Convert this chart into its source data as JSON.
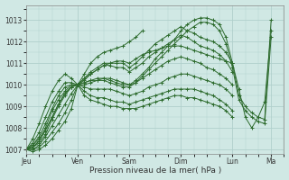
{
  "bg_color": "#d0e8e4",
  "grid_color": "#b0d0cc",
  "line_color": "#2d6b2d",
  "xlabel": "Pression niveau de la mer( hPa )",
  "ylim": [
    1006.8,
    1013.7
  ],
  "yticks": [
    1007,
    1008,
    1009,
    1010,
    1011,
    1012,
    1013
  ],
  "day_labels": [
    "Jeu",
    "Ven",
    "Sam",
    "Dim",
    "Lun",
    "Ma"
  ],
  "day_positions": [
    0,
    24,
    48,
    72,
    96,
    114
  ],
  "total_hours": 120,
  "lines": [
    {
      "x": [
        0,
        3,
        6,
        9,
        12,
        15,
        18,
        21,
        24,
        27,
        30,
        33,
        36,
        39,
        42,
        45,
        48,
        51,
        54,
        57,
        60,
        63,
        66,
        69,
        72,
        75,
        78,
        81,
        84,
        87,
        90,
        93,
        96,
        99,
        102,
        105,
        108,
        111,
        114
      ],
      "y": [
        1007.0,
        1007.2,
        1007.5,
        1008.0,
        1008.8,
        1009.3,
        1009.7,
        1010.0,
        1010.0,
        1010.1,
        1010.2,
        1010.3,
        1010.3,
        1010.2,
        1010.1,
        1010.0,
        1010.0,
        1010.2,
        1010.5,
        1010.8,
        1011.2,
        1011.5,
        1011.8,
        1012.1,
        1012.5,
        1012.8,
        1013.0,
        1013.1,
        1013.1,
        1013.0,
        1012.8,
        1012.2,
        1011.0,
        1009.5,
        1009.0,
        1008.7,
        1008.5,
        1008.4,
        1013.0
      ]
    },
    {
      "x": [
        0,
        3,
        6,
        9,
        12,
        15,
        18,
        21,
        24,
        27,
        30,
        33,
        36,
        39,
        42,
        45,
        48,
        51,
        54,
        57,
        60,
        63,
        66,
        69,
        72,
        75,
        78,
        81,
        84,
        87,
        90,
        93,
        96,
        99,
        102,
        105,
        108,
        111,
        114
      ],
      "y": [
        1007.0,
        1007.1,
        1007.3,
        1007.7,
        1008.4,
        1009.0,
        1009.5,
        1009.9,
        1010.0,
        1010.1,
        1010.2,
        1010.2,
        1010.2,
        1010.1,
        1010.0,
        1009.9,
        1009.9,
        1010.1,
        1010.4,
        1010.7,
        1011.0,
        1011.3,
        1011.6,
        1011.9,
        1012.2,
        1012.5,
        1012.7,
        1012.9,
        1012.9,
        1012.8,
        1012.5,
        1011.9,
        1010.8,
        1009.3,
        1008.8,
        1008.5,
        1008.3,
        1008.2,
        1012.2
      ]
    },
    {
      "x": [
        0,
        3,
        6,
        9,
        12,
        15,
        18,
        21,
        24,
        27,
        30,
        33,
        36,
        39,
        42,
        45,
        48,
        51,
        54,
        57,
        60,
        63,
        66,
        69,
        72,
        75,
        78,
        81,
        84,
        87,
        90,
        93,
        96
      ],
      "y": [
        1007.0,
        1007.3,
        1007.8,
        1008.5,
        1009.2,
        1009.7,
        1010.1,
        1010.1,
        1010.0,
        1010.3,
        1010.6,
        1010.8,
        1011.0,
        1011.0,
        1011.0,
        1011.0,
        1010.8,
        1011.0,
        1011.3,
        1011.6,
        1011.9,
        1012.1,
        1012.3,
        1012.5,
        1012.7,
        1012.5,
        1012.4,
        1012.2,
        1012.1,
        1012.0,
        1011.8,
        1011.5,
        1011.0
      ]
    },
    {
      "x": [
        0,
        3,
        6,
        9,
        12,
        15,
        18,
        21,
        24,
        27,
        30,
        33,
        36,
        39,
        42,
        45,
        48,
        51,
        54,
        57,
        60,
        63,
        66,
        69,
        72,
        75,
        78,
        81,
        84,
        87,
        90,
        93,
        96
      ],
      "y": [
        1007.0,
        1007.2,
        1007.6,
        1008.2,
        1008.9,
        1009.5,
        1009.9,
        1010.0,
        1010.0,
        1010.2,
        1010.5,
        1010.7,
        1010.9,
        1010.9,
        1010.8,
        1010.8,
        1010.6,
        1010.8,
        1011.0,
        1011.3,
        1011.5,
        1011.7,
        1011.9,
        1012.1,
        1012.3,
        1012.2,
        1012.0,
        1011.8,
        1011.7,
        1011.6,
        1011.4,
        1011.1,
        1010.6
      ]
    },
    {
      "x": [
        0,
        3,
        6,
        9,
        12,
        15,
        18,
        21,
        24,
        27,
        30,
        33,
        36,
        39,
        42,
        45,
        48,
        51,
        54,
        57,
        60,
        63,
        66,
        69,
        72,
        75,
        78,
        81,
        84,
        87,
        90,
        93,
        96
      ],
      "y": [
        1007.0,
        1007.1,
        1007.4,
        1007.9,
        1008.5,
        1009.1,
        1009.6,
        1009.9,
        1010.0,
        1010.0,
        1010.1,
        1010.2,
        1010.3,
        1010.3,
        1010.2,
        1010.1,
        1010.0,
        1010.1,
        1010.3,
        1010.5,
        1010.7,
        1010.9,
        1011.1,
        1011.2,
        1011.3,
        1011.2,
        1011.1,
        1011.0,
        1010.8,
        1010.7,
        1010.5,
        1010.3,
        1010.0
      ]
    },
    {
      "x": [
        0,
        3,
        6,
        9,
        12,
        15,
        18,
        21,
        24,
        27,
        30,
        33,
        36,
        39,
        42,
        45,
        48,
        51,
        54,
        57,
        60,
        63,
        66,
        69,
        72,
        75,
        78,
        81,
        84,
        87,
        90,
        93,
        96
      ],
      "y": [
        1007.0,
        1007.0,
        1007.2,
        1007.6,
        1008.1,
        1008.6,
        1009.1,
        1009.6,
        1010.0,
        1009.9,
        1009.8,
        1009.8,
        1009.8,
        1009.8,
        1009.7,
        1009.6,
        1009.5,
        1009.6,
        1009.7,
        1009.9,
        1010.0,
        1010.1,
        1010.3,
        1010.4,
        1010.5,
        1010.5,
        1010.4,
        1010.3,
        1010.2,
        1010.1,
        1010.0,
        1009.8,
        1009.5
      ]
    },
    {
      "x": [
        0,
        3,
        6,
        9,
        12,
        15,
        18,
        21,
        24,
        27,
        30,
        33,
        36,
        39,
        42,
        45,
        48,
        51,
        54,
        57,
        60,
        63,
        66,
        69,
        72,
        75,
        78,
        81,
        84,
        87,
        90,
        93,
        96
      ],
      "y": [
        1007.0,
        1007.0,
        1007.1,
        1007.4,
        1007.8,
        1008.2,
        1008.7,
        1009.3,
        1010.0,
        1009.7,
        1009.5,
        1009.4,
        1009.4,
        1009.3,
        1009.2,
        1009.2,
        1009.1,
        1009.2,
        1009.3,
        1009.4,
        1009.5,
        1009.6,
        1009.7,
        1009.8,
        1009.8,
        1009.8,
        1009.8,
        1009.7,
        1009.6,
        1009.5,
        1009.3,
        1009.1,
        1008.8
      ]
    },
    {
      "x": [
        0,
        3,
        6,
        9,
        12,
        15,
        18,
        21,
        24,
        27,
        30,
        33,
        36,
        39,
        42,
        45,
        48,
        51,
        54,
        57,
        60,
        63,
        66,
        69,
        72,
        75,
        78,
        81,
        84,
        87,
        90,
        93,
        96
      ],
      "y": [
        1007.0,
        1006.9,
        1007.0,
        1007.2,
        1007.5,
        1007.9,
        1008.3,
        1008.9,
        1010.0,
        1009.5,
        1009.3,
        1009.2,
        1009.1,
        1009.0,
        1009.0,
        1008.9,
        1008.9,
        1008.9,
        1009.0,
        1009.1,
        1009.2,
        1009.3,
        1009.4,
        1009.5,
        1009.5,
        1009.4,
        1009.4,
        1009.3,
        1009.2,
        1009.1,
        1009.0,
        1008.8,
        1008.5
      ]
    },
    {
      "x": [
        0,
        3,
        6,
        9,
        12,
        15,
        18,
        21,
        24,
        27,
        30,
        33,
        36,
        39,
        42,
        45,
        48,
        51,
        54
      ],
      "y": [
        1007.0,
        1007.5,
        1008.2,
        1009.0,
        1009.7,
        1010.2,
        1010.5,
        1010.3,
        1010.0,
        1010.5,
        1011.0,
        1011.3,
        1011.5,
        1011.6,
        1011.7,
        1011.8,
        1012.0,
        1012.2,
        1012.5
      ]
    },
    {
      "x": [
        0,
        3,
        6,
        9,
        12,
        15,
        18,
        21,
        24,
        27,
        30,
        33,
        36,
        39,
        42,
        45,
        48,
        51,
        54,
        57,
        60,
        63,
        66,
        69,
        72,
        75,
        78,
        81,
        84,
        87,
        90,
        93,
        96,
        99,
        102,
        105,
        108,
        111,
        114
      ],
      "y": [
        1007.0,
        1007.1,
        1007.4,
        1007.9,
        1008.5,
        1009.1,
        1009.6,
        1009.9,
        1010.0,
        1010.3,
        1010.5,
        1010.7,
        1010.9,
        1011.0,
        1011.1,
        1011.1,
        1011.0,
        1011.2,
        1011.4,
        1011.5,
        1011.6,
        1011.7,
        1011.8,
        1011.8,
        1011.8,
        1011.7,
        1011.6,
        1011.5,
        1011.4,
        1011.3,
        1011.2,
        1011.1,
        1011.0,
        1009.8,
        1008.5,
        1008.0,
        1008.5,
        1009.2,
        1012.5
      ]
    }
  ]
}
